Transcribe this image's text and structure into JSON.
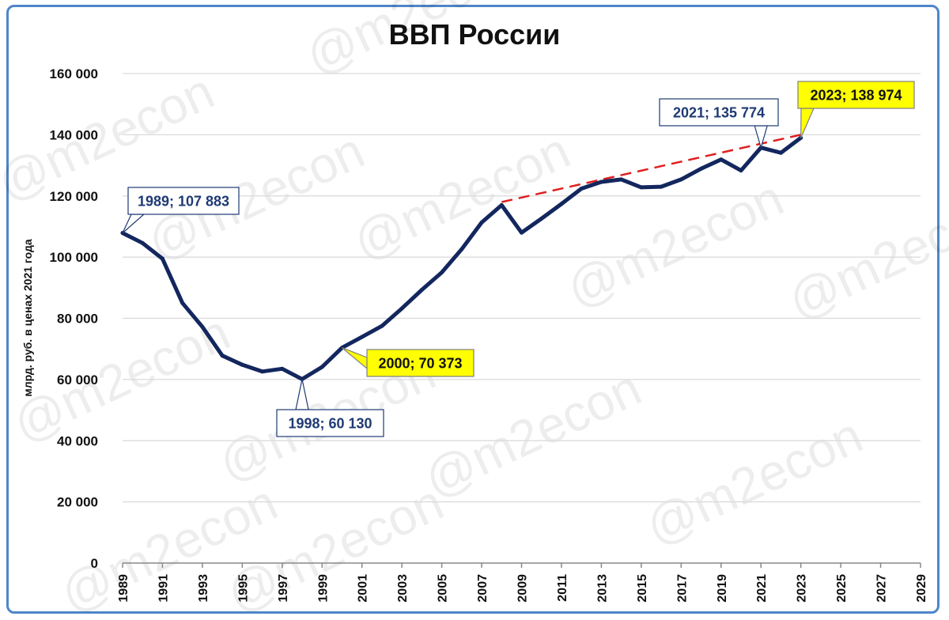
{
  "chart_data": {
    "type": "line",
    "title": "ВВП России",
    "ylabel": "млрд. руб. в ценах 2021 года",
    "xlabel": "",
    "xlim": [
      1989,
      2029
    ],
    "ylim": [
      0,
      160000
    ],
    "grid": true,
    "y_ticks": [
      {
        "value": 0,
        "label": "0"
      },
      {
        "value": 20000,
        "label": "20 000"
      },
      {
        "value": 40000,
        "label": "40 000"
      },
      {
        "value": 60000,
        "label": "60 000"
      },
      {
        "value": 80000,
        "label": "80 000"
      },
      {
        "value": 100000,
        "label": "100 000"
      },
      {
        "value": 120000,
        "label": "120 000"
      },
      {
        "value": 140000,
        "label": "140 000"
      },
      {
        "value": 160000,
        "label": "160 000"
      }
    ],
    "x_ticks": [
      {
        "value": 1989,
        "label": "1989"
      },
      {
        "value": 1991,
        "label": "1991"
      },
      {
        "value": 1993,
        "label": "1993"
      },
      {
        "value": 1995,
        "label": "1995"
      },
      {
        "value": 1997,
        "label": "1997"
      },
      {
        "value": 1999,
        "label": "1999"
      },
      {
        "value": 2001,
        "label": "2001"
      },
      {
        "value": 2003,
        "label": "2003"
      },
      {
        "value": 2005,
        "label": "2005"
      },
      {
        "value": 2007,
        "label": "2007"
      },
      {
        "value": 2009,
        "label": "2009"
      },
      {
        "value": 2011,
        "label": "2011"
      },
      {
        "value": 2013,
        "label": "2013"
      },
      {
        "value": 2015,
        "label": "2015"
      },
      {
        "value": 2017,
        "label": "2017"
      },
      {
        "value": 2019,
        "label": "2019"
      },
      {
        "value": 2021,
        "label": "2021"
      },
      {
        "value": 2023,
        "label": "2023"
      },
      {
        "value": 2025,
        "label": "2025"
      },
      {
        "value": 2027,
        "label": "2027"
      },
      {
        "value": 2029,
        "label": "2029"
      }
    ],
    "series": [
      {
        "color": "#13275e",
        "x": [
          1989,
          1990,
          1991,
          1992,
          1993,
          1994,
          1995,
          1996,
          1997,
          1998,
          1999,
          2000,
          2001,
          2002,
          2003,
          2004,
          2005,
          2006,
          2007,
          2008,
          2009,
          2010,
          2011,
          2012,
          2013,
          2014,
          2015,
          2016,
          2017,
          2018,
          2019,
          2020,
          2021,
          2022,
          2023
        ],
        "values": [
          107883,
          104600,
          99500,
          85000,
          77200,
          67800,
          64800,
          62600,
          63500,
          60130,
          64100,
          70373,
          73900,
          77500,
          83200,
          89300,
          95000,
          102600,
          111300,
          117000,
          108000,
          112600,
          117400,
          122400,
          124600,
          125400,
          122800,
          123000,
          125400,
          128900,
          131900,
          128300,
          135774,
          134100,
          138974
        ]
      }
    ],
    "trend": {
      "color": "#e02020",
      "style": "dashed",
      "x": [
        2008,
        2023
      ],
      "values": [
        118000,
        140000
      ]
    },
    "annotations": [
      {
        "text": "1989; 107 883",
        "x": 1989,
        "y": 107883,
        "style": "white"
      },
      {
        "text": "1998; 60 130",
        "x": 1998,
        "y": 60130,
        "style": "white"
      },
      {
        "text": "2000; 70 373",
        "x": 2000,
        "y": 70373,
        "style": "yellow"
      },
      {
        "text": "2021; 135 774",
        "x": 2021,
        "y": 135774,
        "style": "white"
      },
      {
        "text": "2023; 138 974",
        "x": 2023,
        "y": 138974,
        "style": "yellow"
      }
    ]
  },
  "watermark": "@m2econ"
}
